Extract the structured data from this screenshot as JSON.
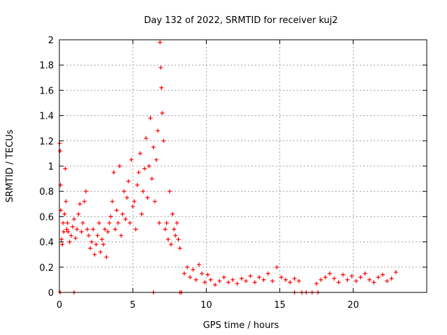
{
  "chart_data": {
    "type": "scatter",
    "title": "Day 132 of 2022, SRMTID for receiver kuj2",
    "xlabel": "GPS time / hours",
    "ylabel": "SRMTID / TECUs",
    "xlim": [
      0,
      25
    ],
    "ylim": [
      0,
      2
    ],
    "xticks": [
      0,
      5,
      10,
      15,
      20
    ],
    "xtick_labels": [
      "0",
      "5",
      "10",
      "15",
      "20"
    ],
    "yticks": [
      0,
      0.2,
      0.4,
      0.6,
      0.8,
      1,
      1.2,
      1.4,
      1.6,
      1.8,
      2
    ],
    "ytick_labels": [
      "0",
      "0.2",
      "0.4",
      "0.6",
      "0.8",
      "1",
      "1.2",
      "1.4",
      "1.6",
      "1.8",
      "2"
    ],
    "grid": true,
    "marker": "+",
    "color": "#ff0000",
    "series": [
      {
        "name": "kuj2",
        "x": [
          0.02,
          0.05,
          0.08,
          0.1,
          0.15,
          0.2,
          0.25,
          0.3,
          0.35,
          0.4,
          0.45,
          0.5,
          0.55,
          0.6,
          0.7,
          0.8,
          0.9,
          1.0,
          1.1,
          1.2,
          1.3,
          1.4,
          1.5,
          1.6,
          1.7,
          1.8,
          1.9,
          2.0,
          2.1,
          2.2,
          2.3,
          2.4,
          2.5,
          2.6,
          2.7,
          2.8,
          2.9,
          3.0,
          3.1,
          3.2,
          3.3,
          3.4,
          3.5,
          3.6,
          3.7,
          3.8,
          3.9,
          4.0,
          4.1,
          4.2,
          4.3,
          4.4,
          4.5,
          4.6,
          4.7,
          4.8,
          4.9,
          5.0,
          5.1,
          5.2,
          5.3,
          5.4,
          5.5,
          5.6,
          5.7,
          5.8,
          5.9,
          6.0,
          6.1,
          6.2,
          6.3,
          6.4,
          6.5,
          6.6,
          6.7,
          6.8,
          6.85,
          6.9,
          6.95,
          7.0,
          7.1,
          7.2,
          7.3,
          7.4,
          7.5,
          7.6,
          7.7,
          7.8,
          7.9,
          8.0,
          8.1,
          8.2,
          8.5,
          8.7,
          8.9,
          9.1,
          9.3,
          9.5,
          9.7,
          9.9,
          10.1,
          10.3,
          10.6,
          10.9,
          11.2,
          11.5,
          11.8,
          12.1,
          12.4,
          12.7,
          13.0,
          13.3,
          13.6,
          13.9,
          14.2,
          14.5,
          14.8,
          15.1,
          15.4,
          15.7,
          16.0,
          16.3,
          17.5,
          17.8,
          18.1,
          18.4,
          18.7,
          19.0,
          19.3,
          19.6,
          19.9,
          20.2,
          20.5,
          20.8,
          21.1,
          21.4,
          21.7,
          22.0,
          22.3,
          22.6,
          22.9
        ],
        "y": [
          1.18,
          1.12,
          0.85,
          0.65,
          0.42,
          0.38,
          0.55,
          0.48,
          0.62,
          0.98,
          0.72,
          0.5,
          0.55,
          0.48,
          0.4,
          0.45,
          0.52,
          0.58,
          0.43,
          0.5,
          0.62,
          0.7,
          0.48,
          0.55,
          0.72,
          0.8,
          0.5,
          0.45,
          0.35,
          0.4,
          0.5,
          0.3,
          0.38,
          0.45,
          0.55,
          0.32,
          0.42,
          0.38,
          0.5,
          0.28,
          0.48,
          0.55,
          0.6,
          0.72,
          0.95,
          0.5,
          0.65,
          0.55,
          1.0,
          0.45,
          0.62,
          0.8,
          0.58,
          0.75,
          0.88,
          0.55,
          1.05,
          0.68,
          0.72,
          0.5,
          0.85,
          0.95,
          1.1,
          0.62,
          0.8,
          0.98,
          1.22,
          0.75,
          1.0,
          1.38,
          0.9,
          1.15,
          0.72,
          1.05,
          1.28,
          0.55,
          1.98,
          1.78,
          1.62,
          1.42,
          1.2,
          0.5,
          0.55,
          0.42,
          0.8,
          0.38,
          0.62,
          0.5,
          0.45,
          0.55,
          0.42,
          0.35,
          0.15,
          0.2,
          0.12,
          0.18,
          0.1,
          0.22,
          0.15,
          0.08,
          0.14,
          0.1,
          0.06,
          0.09,
          0.12,
          0.08,
          0.1,
          0.07,
          0.11,
          0.09,
          0.13,
          0.08,
          0.12,
          0.1,
          0.15,
          0.09,
          0.2,
          0.12,
          0.1,
          0.08,
          0.11,
          0.09,
          0.07,
          0.1,
          0.12,
          0.15,
          0.11,
          0.08,
          0.14,
          0.1,
          0.13,
          0.09,
          0.12,
          0.15,
          0.1,
          0.08,
          0.12,
          0.14,
          0.09,
          0.11,
          0.16
        ],
        "zero_points_x": [
          0.05,
          1.0,
          6.4,
          8.2,
          8.3,
          16.0,
          16.5,
          16.8,
          17.2,
          17.6
        ]
      }
    ]
  }
}
